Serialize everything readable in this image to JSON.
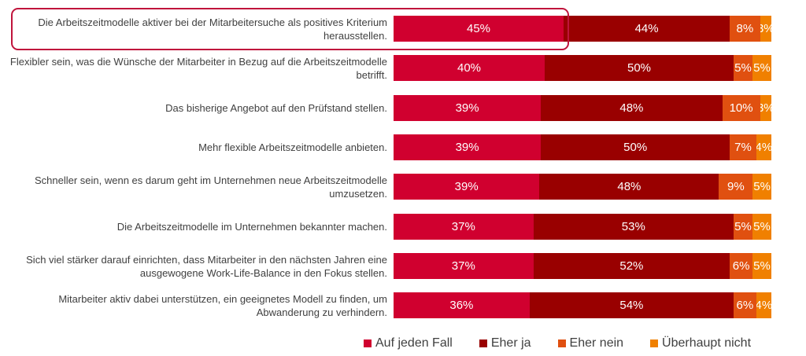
{
  "chart_data": {
    "type": "bar",
    "orientation": "horizontal",
    "stacked": true,
    "categories": [
      "Die Arbeitszeitmodelle aktiver bei der Mitarbeitersuche als positives Kriterium herausstellen.",
      "Flexibler sein, was die Wünsche der Mitarbeiter in Bezug auf die Arbeitszeitmodelle betrifft.",
      "Das bisherige Angebot auf den Prüfstand stellen.",
      "Mehr flexible Arbeitszeitmodelle anbieten.",
      "Schneller sein, wenn es darum geht im Unternehmen neue Arbeitszeitmodelle umzusetzen.",
      "Die Arbeitszeitmodelle im Unternehmen bekannter machen.",
      "Sich viel stärker darauf einrichten, dass Mitarbeiter in den nächsten Jahren eine ausgewogene Work-Life-Balance in den Fokus stellen.",
      "Mitarbeiter aktiv dabei unterstützen, ein geeignetes Modell zu finden, um Abwanderung zu verhindern."
    ],
    "series": [
      {
        "name": "Auf jeden Fall",
        "color": "#d0002f",
        "values": [
          45,
          40,
          39,
          39,
          39,
          37,
          37,
          36
        ]
      },
      {
        "name": "Eher ja",
        "color": "#990000",
        "values": [
          44,
          50,
          48,
          50,
          48,
          53,
          52,
          54
        ]
      },
      {
        "name": "Eher nein",
        "color": "#e05010",
        "values": [
          8,
          5,
          10,
          7,
          9,
          5,
          6,
          6
        ]
      },
      {
        "name": "Überhaupt nicht",
        "color": "#f08000",
        "values": [
          3,
          5,
          3,
          4,
          5,
          5,
          5,
          4
        ]
      }
    ],
    "value_suffix": "%",
    "legend": "bottom",
    "highlighted_category_index": 0,
    "highlight_color": "#c0143c"
  }
}
